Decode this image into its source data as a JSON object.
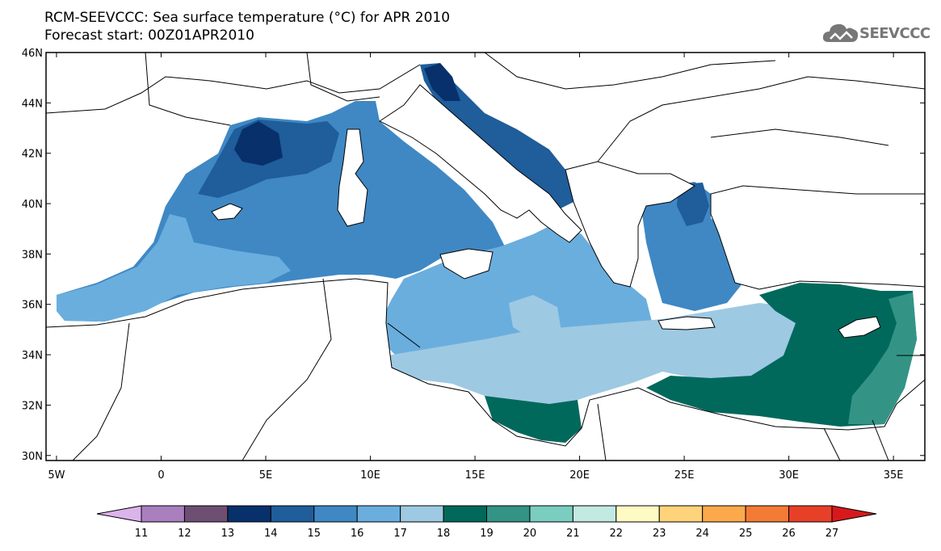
{
  "header": {
    "title": "RCM-SEEVCCC: Sea surface temperature (°C) for APR 2010",
    "subtitle": "Forecast start: 00Z01APR2010"
  },
  "logo": {
    "text": "SEEVCCC",
    "icon": "cloud-icon"
  },
  "map": {
    "lon_range": [
      -5.5,
      36.5
    ],
    "lat_range": [
      29.8,
      46
    ],
    "lat_ticks": [
      "30N",
      "32N",
      "34N",
      "36N",
      "38N",
      "40N",
      "42N",
      "44N",
      "46N"
    ],
    "lon_ticks": [
      "5W",
      "0",
      "5E",
      "10E",
      "15E",
      "20E",
      "25E",
      "30E",
      "35E"
    ]
  },
  "colorbar": {
    "labels": [
      "11",
      "12",
      "13",
      "14",
      "15",
      "16",
      "17",
      "18",
      "19",
      "20",
      "21",
      "22",
      "23",
      "24",
      "25",
      "26",
      "27"
    ],
    "colors": [
      "#a97fbe",
      "#6d4f74",
      "#08306b",
      "#1f5d9b",
      "#3f88c4",
      "#6aaede",
      "#9ec9e2",
      "#00695c",
      "#339486",
      "#7acdbf",
      "#c2e9e2",
      "#fff9c4",
      "#ffd37a",
      "#fca94b",
      "#f47b35",
      "#e84028"
    ],
    "under_color": "#dcb4ec",
    "over_color": "#d7191c"
  }
}
